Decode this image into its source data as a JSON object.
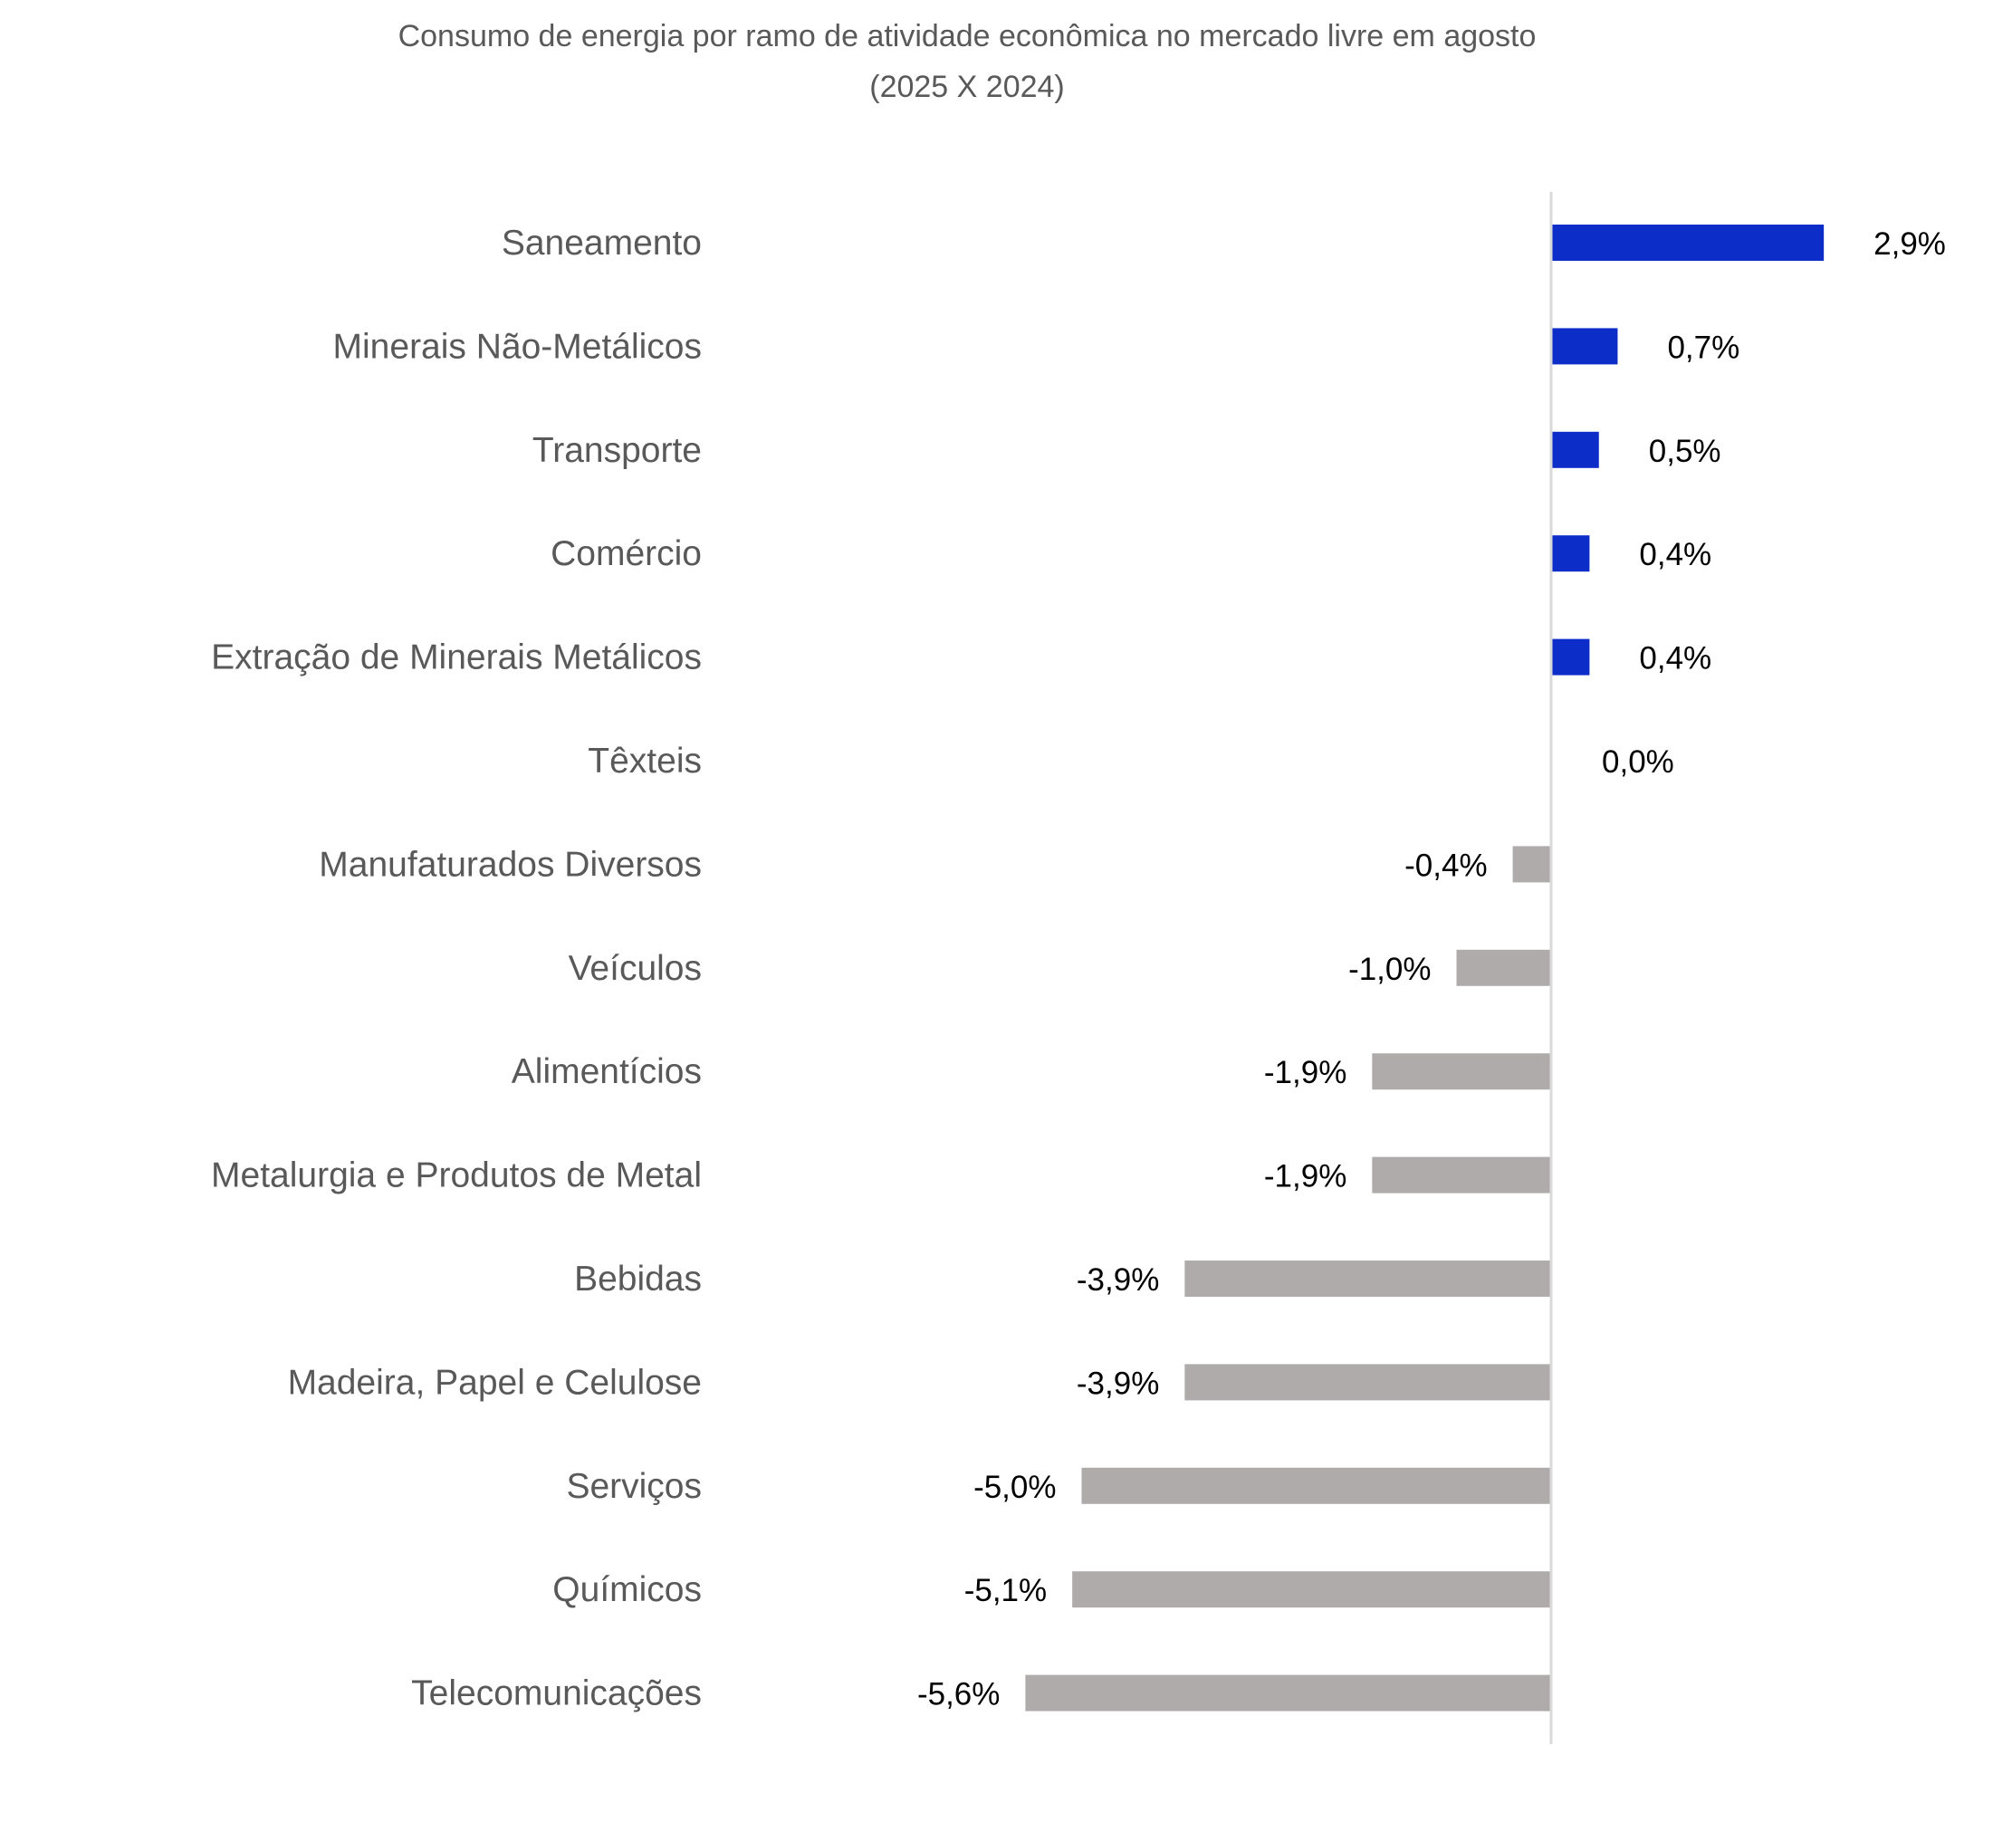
{
  "chart_data": {
    "type": "bar",
    "orientation": "horizontal",
    "title": "Consumo de energia por ramo de atividade econômica no mercado livre em agosto",
    "subtitle": "(2025 X 2024)",
    "xlabel": "",
    "ylabel": "",
    "grid": false,
    "legend": "none",
    "xlim": [
      -6,
      3
    ],
    "categories": [
      "Saneamento",
      "Minerais Não-Metálicos",
      "Transporte",
      "Comércio",
      "Extração de Minerais Metálicos",
      "Têxteis",
      "Manufaturados Diversos",
      "Veículos",
      "Alimentícios",
      "Metalurgia e Produtos de Metal",
      "Bebidas",
      "Madeira, Papel e Celulose",
      "Serviços",
      "Químicos",
      "Telecomunicações"
    ],
    "values": [
      2.9,
      0.7,
      0.5,
      0.4,
      0.4,
      0.0,
      -0.4,
      -1.0,
      -1.9,
      -1.9,
      -3.9,
      -3.9,
      -5.0,
      -5.1,
      -5.6
    ],
    "data_labels": [
      "2,9%",
      "0,7%",
      "0,5%",
      "0,4%",
      "0,4%",
      "0,0%",
      "-0,4%",
      "-1,0%",
      "-1,9%",
      "-1,9%",
      "-3,9%",
      "-3,9%",
      "-5,0%",
      "-5,1%",
      "-5,6%"
    ],
    "colors": {
      "positive": "#0C2DC8",
      "negative": "#AFABAB",
      "axis": "#D9D9D9"
    }
  }
}
